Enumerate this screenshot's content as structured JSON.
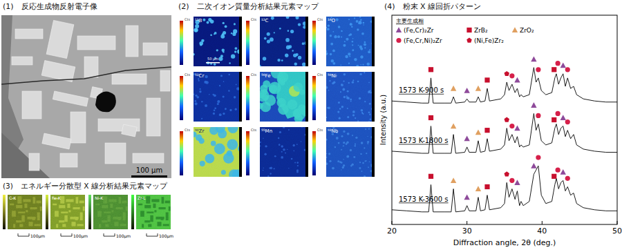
{
  "panels": {
    "bse": {
      "title": "(1)　反応生成物反射電子像",
      "scale_bar": "100 μm"
    },
    "sims": {
      "title": "(2)　二次イオン質量分析結果元素マップ",
      "unit": "Cts",
      "scale_bar": "50 μm",
      "maps": [
        "¹¹B",
        "¹²C",
        "¹⁶O",
        "⁵²Cr",
        "⁵⁶Fe",
        "⁵⁸Ni",
        "⁹⁰Zr",
        "⁵⁵Mn",
        "⁹³Nb"
      ]
    },
    "edx": {
      "title": "(3)　エネルギー分散型 X 線分析結果元素マップ",
      "maps": [
        {
          "label": "C-K",
          "scale_bar": "100μm"
        },
        {
          "label": "Fe-K",
          "scale_bar": "100μm"
        },
        {
          "label": "Ni-K",
          "scale_bar": "100μm"
        },
        {
          "label": "Zr-L",
          "scale_bar": "100μm"
        }
      ]
    }
  },
  "chart_data": {
    "type": "line",
    "title": "(4)　粉末 X 線回折パターン",
    "x_label": "Diffraction angle, 2θ (deg.)",
    "y_label": "Intensity (a.u.)",
    "legend_title": "主要生成相",
    "tick_labels": "x",
    "xlim": [
      20,
      50
    ],
    "xticks": [
      20,
      30,
      40,
      50
    ],
    "ylim": [
      0,
      100
    ],
    "phases": [
      {
        "name": "(Fe,Cr)₂Zr",
        "color": "#8e4a9a",
        "marker": "triangle"
      },
      {
        "name": "ZrB₂",
        "color": "#c8102e",
        "marker": "square"
      },
      {
        "name": "ZrO₂",
        "color": "#e0a060",
        "marker": "triangle"
      },
      {
        "name": "(Fe,Cr,Ni)₂Zr",
        "color": "#d6204a",
        "marker": "circle"
      },
      {
        "name": "(Ni,Fe)Zr₂",
        "color": "#c8102e",
        "marker": "pentagon"
      }
    ],
    "x": [
      20,
      22,
      24,
      24.9,
      25.2,
      25.5,
      27,
      27.9,
      28.2,
      28.5,
      29.7,
      30.0,
      30.3,
      31.2,
      31.5,
      31.8,
      32.4,
      32.7,
      33.0,
      34.5,
      35.0,
      35.3,
      35.6,
      36.0,
      36.4,
      36.7,
      37.0,
      37.2,
      37.5,
      38.3,
      38.9,
      39.2,
      39.5,
      39.9,
      40.5,
      41.3,
      41.7,
      41.9,
      42.2,
      42.5,
      42.8,
      43.1,
      43.4,
      43.8,
      44.2,
      44.6,
      45.5,
      47,
      48.5,
      50
    ],
    "series": [
      {
        "name": "1573 K-900 s",
        "color": "#000000",
        "values": [
          59,
          58.5,
          58,
          58,
          70,
          58,
          58,
          58,
          61,
          58,
          58.5,
          60,
          58.5,
          58.5,
          61,
          58.5,
          59,
          65,
          59,
          60,
          62,
          68,
          64,
          67,
          63,
          65,
          61,
          62,
          61,
          62,
          75,
          68,
          70,
          64,
          62,
          63,
          70,
          72,
          67,
          70,
          72,
          66,
          70,
          65,
          66,
          62,
          60,
          59,
          58.5,
          58.5
        ],
        "markers": [
          {
            "x": 25.2,
            "y": 74,
            "phase": 1
          },
          {
            "x": 28.2,
            "y": 65,
            "phase": 2
          },
          {
            "x": 30.0,
            "y": 64,
            "phase": 0
          },
          {
            "x": 31.5,
            "y": 65,
            "phase": 2
          },
          {
            "x": 32.7,
            "y": 69,
            "phase": 1
          },
          {
            "x": 35.3,
            "y": 72,
            "phase": 4
          },
          {
            "x": 36.0,
            "y": 71,
            "phase": 3
          },
          {
            "x": 36.7,
            "y": 69,
            "phase": 0
          },
          {
            "x": 38.9,
            "y": 79,
            "phase": 0
          },
          {
            "x": 39.5,
            "y": 74,
            "phase": 3
          },
          {
            "x": 41.6,
            "y": 74,
            "phase": 1
          },
          {
            "x": 42.1,
            "y": 77,
            "phase": 3
          },
          {
            "x": 42.8,
            "y": 76,
            "phase": 0
          },
          {
            "x": 43.4,
            "y": 74,
            "phase": 3
          }
        ]
      },
      {
        "name": "1573 K-1800 s",
        "color": "#000000",
        "values": [
          35,
          34.5,
          34,
          34,
          47,
          34,
          34,
          34,
          43,
          34,
          34.5,
          37,
          34.5,
          34.5,
          40,
          34.5,
          35,
          41,
          35,
          36,
          38,
          46,
          40,
          43,
          39,
          42,
          37,
          38,
          37,
          38,
          53,
          45,
          48,
          40,
          38,
          39,
          46,
          48,
          43,
          46,
          47,
          42,
          45,
          41,
          43,
          38,
          36,
          35,
          34.5,
          34.5
        ],
        "markers": [
          {
            "x": 25.2,
            "y": 51,
            "phase": 1
          },
          {
            "x": 28.2,
            "y": 47,
            "phase": 2
          },
          {
            "x": 30.0,
            "y": 41,
            "phase": 0
          },
          {
            "x": 31.5,
            "y": 44,
            "phase": 2
          },
          {
            "x": 32.7,
            "y": 45,
            "phase": 1
          },
          {
            "x": 35.3,
            "y": 50,
            "phase": 4
          },
          {
            "x": 36.0,
            "y": 47,
            "phase": 3
          },
          {
            "x": 36.7,
            "y": 46,
            "phase": 0
          },
          {
            "x": 38.9,
            "y": 57,
            "phase": 0
          },
          {
            "x": 39.5,
            "y": 52,
            "phase": 3
          },
          {
            "x": 41.6,
            "y": 50,
            "phase": 1
          },
          {
            "x": 42.1,
            "y": 53,
            "phase": 3
          },
          {
            "x": 42.8,
            "y": 51,
            "phase": 0
          },
          {
            "x": 43.4,
            "y": 49,
            "phase": 3
          }
        ]
      },
      {
        "name": "1573 K-3600 s",
        "color": "#000000",
        "values": [
          7,
          6.5,
          6,
          6,
          19,
          6,
          6,
          6,
          17,
          6,
          6.5,
          9,
          6.5,
          6.5,
          13,
          6.5,
          7,
          14,
          7,
          8,
          10,
          20,
          13,
          17,
          12,
          16,
          9,
          11,
          9,
          11,
          24,
          26,
          28,
          14,
          10,
          11,
          19,
          22,
          17,
          20,
          21,
          16,
          18,
          14,
          15,
          10,
          8,
          7,
          6.5,
          6.5
        ],
        "markers": [
          {
            "x": 25.2,
            "y": 23,
            "phase": 1
          },
          {
            "x": 28.2,
            "y": 21,
            "phase": 2
          },
          {
            "x": 30.0,
            "y": 13,
            "phase": 0
          },
          {
            "x": 31.5,
            "y": 17,
            "phase": 2
          },
          {
            "x": 32.7,
            "y": 18,
            "phase": 1
          },
          {
            "x": 35.3,
            "y": 24,
            "phase": 4
          },
          {
            "x": 36.0,
            "y": 21,
            "phase": 3
          },
          {
            "x": 36.7,
            "y": 20,
            "phase": 0
          },
          {
            "x": 38.9,
            "y": 28,
            "phase": 0
          },
          {
            "x": 39.5,
            "y": 32,
            "phase": 3
          },
          {
            "x": 41.6,
            "y": 23,
            "phase": 1
          },
          {
            "x": 42.1,
            "y": 26,
            "phase": 3
          },
          {
            "x": 42.8,
            "y": 25,
            "phase": 0
          },
          {
            "x": 43.4,
            "y": 22,
            "phase": 3
          }
        ]
      }
    ]
  }
}
